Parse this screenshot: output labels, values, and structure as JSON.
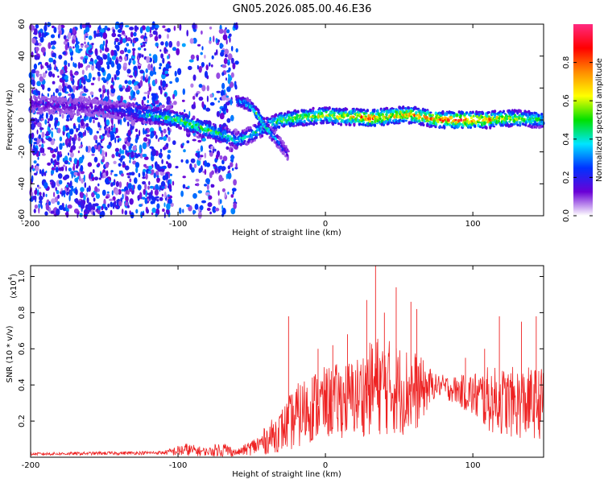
{
  "title": "GN05.2026.085.00.46.E36",
  "chart_data": [
    {
      "type": "heatmap",
      "name": "spectrogram",
      "xlabel": "Height of straight line (km)",
      "ylabel": "Frequency (Hz)",
      "xlim": [
        -200,
        148
      ],
      "ylim": [
        -60,
        60
      ],
      "xticks": [
        -200,
        -100,
        0,
        100
      ],
      "yticks": [
        60,
        40,
        20,
        0,
        -20,
        -40,
        -60
      ],
      "colorbar": {
        "label": "Normalized spectral amplitude",
        "range": [
          0,
          1
        ],
        "ticks": [
          "0.0",
          "0.2",
          "0.4",
          "0.6",
          "0.8"
        ],
        "colors": [
          "#ffffff",
          "#6a00d6",
          "#0033ff",
          "#00e5ff",
          "#00e000",
          "#ffff00",
          "#ff8c00",
          "#ff0000",
          "#ff2a80"
        ]
      },
      "noise_region_km": [
        -200,
        -60
      ],
      "ridge": [
        {
          "x": -200,
          "y": 10,
          "a": 0.15
        },
        {
          "x": -160,
          "y": 8,
          "a": 0.15
        },
        {
          "x": -140,
          "y": 6,
          "a": 0.2
        },
        {
          "x": -130,
          "y": 5,
          "a": 0.28
        },
        {
          "x": -120,
          "y": 3,
          "a": 0.38
        },
        {
          "x": -110,
          "y": 2,
          "a": 0.45
        },
        {
          "x": -100,
          "y": 0,
          "a": 0.5
        },
        {
          "x": -90,
          "y": -3,
          "a": 0.52
        },
        {
          "x": -80,
          "y": -6,
          "a": 0.5
        },
        {
          "x": -70,
          "y": -9,
          "a": 0.45
        },
        {
          "x": -60,
          "y": -13,
          "a": 0.35
        },
        {
          "x": -50,
          "y": -9,
          "a": 0.38
        },
        {
          "x": -40,
          "y": -4,
          "a": 0.45
        },
        {
          "x": -30,
          "y": 0,
          "a": 0.5
        },
        {
          "x": -20,
          "y": 1,
          "a": 0.55
        },
        {
          "x": -10,
          "y": 2,
          "a": 0.6
        },
        {
          "x": 0,
          "y": 3,
          "a": 0.6
        },
        {
          "x": 10,
          "y": 2,
          "a": 0.62
        },
        {
          "x": 20,
          "y": 2,
          "a": 0.65
        },
        {
          "x": 30,
          "y": 1,
          "a": 0.78
        },
        {
          "x": 40,
          "y": 2,
          "a": 0.72
        },
        {
          "x": 50,
          "y": 3,
          "a": 0.68
        },
        {
          "x": 60,
          "y": 3,
          "a": 0.7
        },
        {
          "x": 70,
          "y": 1,
          "a": 0.72
        },
        {
          "x": 80,
          "y": 0,
          "a": 0.82
        },
        {
          "x": 90,
          "y": 0,
          "a": 0.85
        },
        {
          "x": 100,
          "y": 0,
          "a": 0.8
        },
        {
          "x": 110,
          "y": 0,
          "a": 0.72
        },
        {
          "x": 120,
          "y": 1,
          "a": 0.62
        },
        {
          "x": 130,
          "y": 1,
          "a": 0.55
        },
        {
          "x": 148,
          "y": 0,
          "a": 0.45
        }
      ],
      "branch": [
        {
          "x": -60,
          "y": 12,
          "a": 0.28
        },
        {
          "x": -55,
          "y": 11,
          "a": 0.35
        },
        {
          "x": -50,
          "y": 8,
          "a": 0.45
        },
        {
          "x": -45,
          "y": 2,
          "a": 0.5
        },
        {
          "x": -40,
          "y": -5,
          "a": 0.45
        },
        {
          "x": -35,
          "y": -10,
          "a": 0.35
        },
        {
          "x": -30,
          "y": -16,
          "a": 0.25
        },
        {
          "x": -25,
          "y": -22,
          "a": 0.15
        }
      ]
    },
    {
      "type": "line",
      "name": "snr",
      "xlabel": "Height of straight line (km)",
      "ylabel": "SNR (10 * v/v)",
      "multiplier_label": "(x10",
      "multiplier_exp": "4",
      "xlim": [
        -200,
        148
      ],
      "ylim": [
        0,
        1.06
      ],
      "xticks": [
        -200,
        -100,
        0,
        100
      ],
      "yticks": [
        0.2,
        0.4,
        0.6,
        0.8,
        1.0
      ],
      "color": "#ee2222",
      "envelope": [
        {
          "x": -200,
          "mean": 0.018,
          "spread": 0.008
        },
        {
          "x": -110,
          "mean": 0.025,
          "spread": 0.01
        },
        {
          "x": -95,
          "mean": 0.04,
          "spread": 0.04
        },
        {
          "x": -80,
          "mean": 0.03,
          "spread": 0.02
        },
        {
          "x": -70,
          "mean": 0.045,
          "spread": 0.05
        },
        {
          "x": -60,
          "mean": 0.025,
          "spread": 0.015
        },
        {
          "x": -45,
          "mean": 0.07,
          "spread": 0.06
        },
        {
          "x": -30,
          "mean": 0.15,
          "spread": 0.12
        },
        {
          "x": -20,
          "mean": 0.22,
          "spread": 0.18
        },
        {
          "x": -10,
          "mean": 0.28,
          "spread": 0.2
        },
        {
          "x": 0,
          "mean": 0.3,
          "spread": 0.2
        },
        {
          "x": 20,
          "mean": 0.33,
          "spread": 0.22
        },
        {
          "x": 35,
          "mean": 0.4,
          "spread": 0.28
        },
        {
          "x": 60,
          "mean": 0.36,
          "spread": 0.24
        },
        {
          "x": 75,
          "mean": 0.4,
          "spread": 0.06
        },
        {
          "x": 90,
          "mean": 0.37,
          "spread": 0.08
        },
        {
          "x": 110,
          "mean": 0.32,
          "spread": 0.18
        },
        {
          "x": 130,
          "mean": 0.3,
          "spread": 0.2
        },
        {
          "x": 148,
          "mean": 0.3,
          "spread": 0.2
        }
      ],
      "spikes": [
        {
          "x": -25,
          "y": 0.78
        },
        {
          "x": -5,
          "y": 0.6
        },
        {
          "x": 5,
          "y": 0.62
        },
        {
          "x": 15,
          "y": 0.68
        },
        {
          "x": 28,
          "y": 0.87
        },
        {
          "x": 34,
          "y": 1.06
        },
        {
          "x": 40,
          "y": 0.8
        },
        {
          "x": 48,
          "y": 0.94
        },
        {
          "x": 58,
          "y": 0.86
        },
        {
          "x": 62,
          "y": 0.82
        },
        {
          "x": 95,
          "y": 0.55
        },
        {
          "x": 108,
          "y": 0.6
        },
        {
          "x": 118,
          "y": 0.78
        },
        {
          "x": 133,
          "y": 0.75
        },
        {
          "x": 143,
          "y": 0.78
        }
      ]
    }
  ]
}
